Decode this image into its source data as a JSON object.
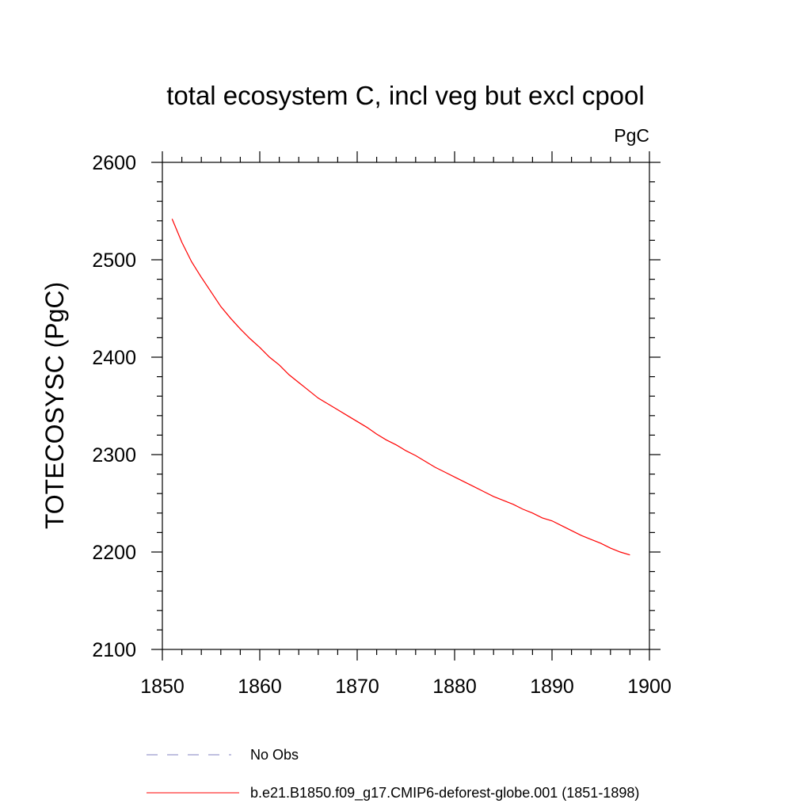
{
  "chart_data": {
    "type": "line",
    "title": "total ecosystem C, incl veg but excl cpool",
    "units": "PgC",
    "xlabel": "",
    "ylabel": "TOTECOSYSC  (PgC)",
    "xlim": [
      1850,
      1900
    ],
    "ylim": [
      2100,
      2600
    ],
    "xticks": [
      1850,
      1860,
      1870,
      1880,
      1890,
      1900
    ],
    "yticks": [
      2100,
      2200,
      2300,
      2400,
      2500,
      2600
    ],
    "grid": false,
    "legend_position": "bottom",
    "series": [
      {
        "name": "b.e21.B1850.f09_g17.CMIP6-deforest-globe.001 (1851-1898)",
        "color": "#ff0000",
        "style": "solid",
        "x": [
          1851,
          1852,
          1853,
          1854,
          1855,
          1856,
          1857,
          1858,
          1859,
          1860,
          1861,
          1862,
          1863,
          1864,
          1865,
          1866,
          1867,
          1868,
          1869,
          1870,
          1871,
          1872,
          1873,
          1874,
          1875,
          1876,
          1877,
          1878,
          1879,
          1880,
          1881,
          1882,
          1883,
          1884,
          1885,
          1886,
          1887,
          1888,
          1889,
          1890,
          1891,
          1892,
          1893,
          1894,
          1895,
          1896,
          1897,
          1898
        ],
        "y": [
          2542,
          2518,
          2498,
          2482,
          2467,
          2452,
          2440,
          2429,
          2419,
          2410,
          2400,
          2392,
          2382,
          2374,
          2366,
          2358,
          2352,
          2346,
          2340,
          2334,
          2328,
          2321,
          2315,
          2310,
          2304,
          2299,
          2293,
          2287,
          2282,
          2277,
          2272,
          2267,
          2262,
          2257,
          2253,
          2249,
          2244,
          2240,
          2235,
          2232,
          2227,
          2222,
          2217,
          2213,
          2209,
          2204,
          2200,
          2197
        ]
      },
      {
        "name": "No Obs",
        "color": "#8080c0",
        "style": "dashed",
        "x": [],
        "y": []
      }
    ]
  }
}
